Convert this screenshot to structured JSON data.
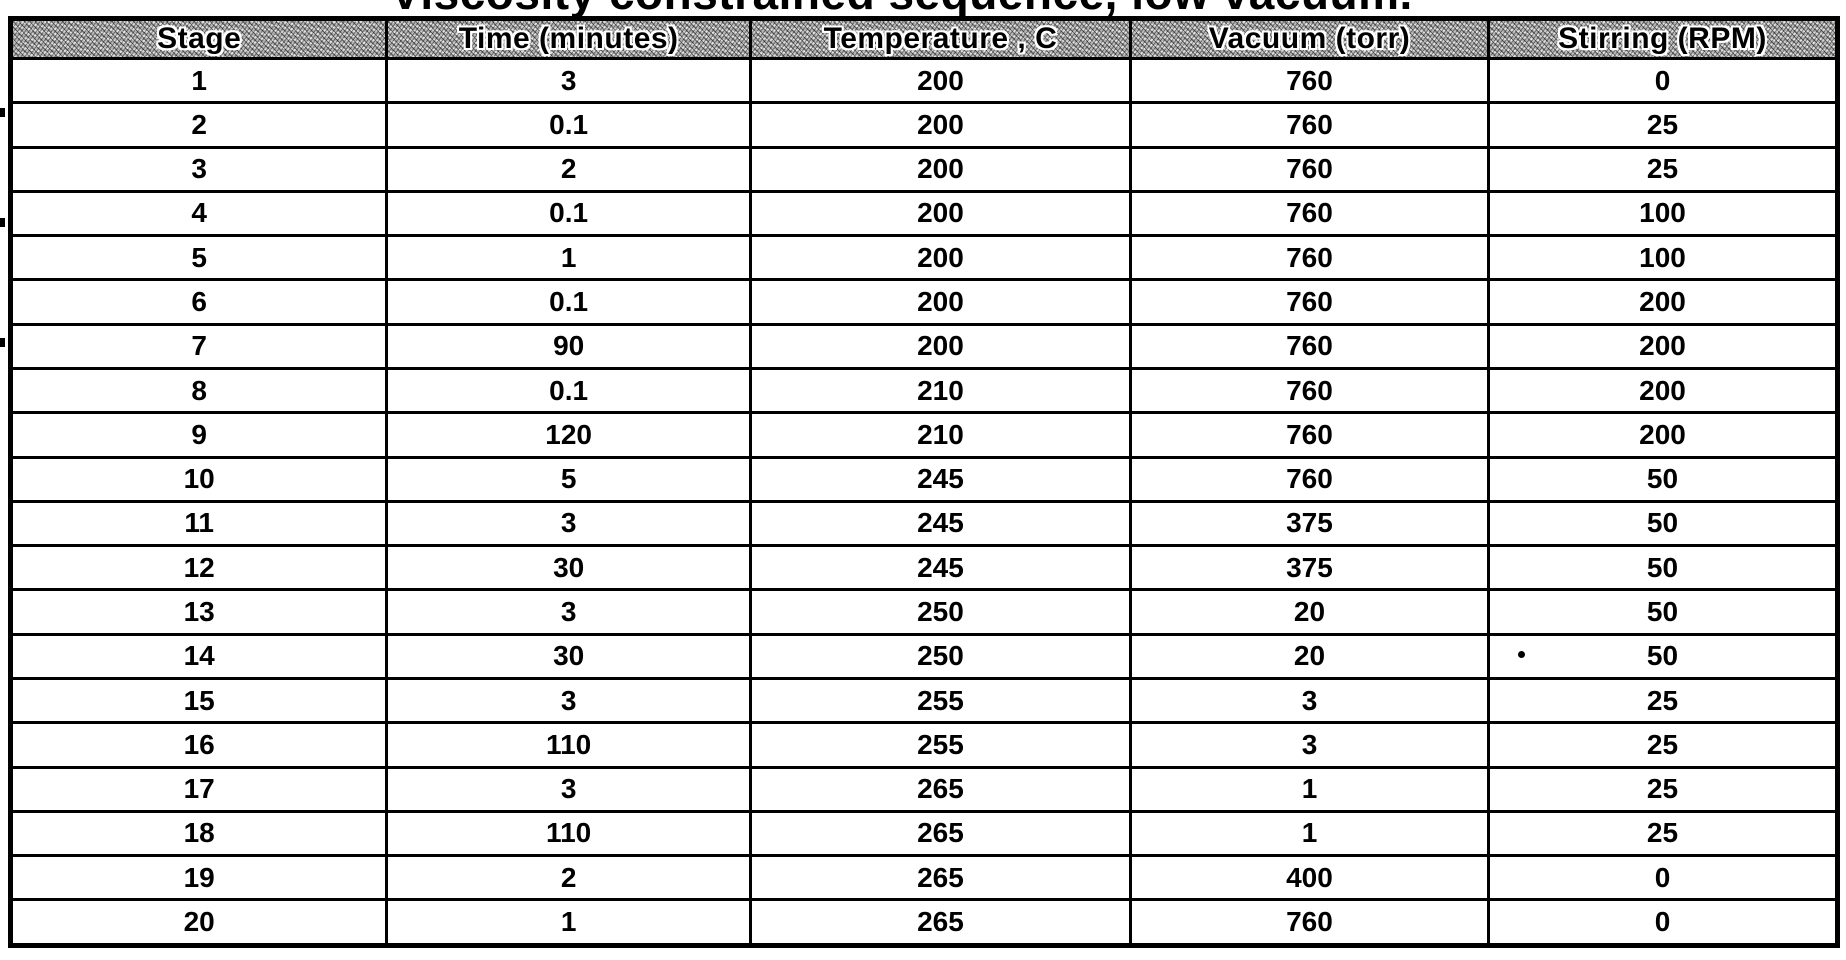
{
  "page": {
    "title": "Viscosity constrained sequence, low vacuum."
  },
  "table": {
    "columns": [
      "Stage",
      "Time (minutes)",
      "Temperature , C",
      "Vacuum (torr)",
      "Stirring (RPM)"
    ],
    "rows": [
      [
        "1",
        "3",
        "200",
        "760",
        "0"
      ],
      [
        "2",
        "0.1",
        "200",
        "760",
        "25"
      ],
      [
        "3",
        "2",
        "200",
        "760",
        "25"
      ],
      [
        "4",
        "0.1",
        "200",
        "760",
        "100"
      ],
      [
        "5",
        "1",
        "200",
        "760",
        "100"
      ],
      [
        "6",
        "0.1",
        "200",
        "760",
        "200"
      ],
      [
        "7",
        "90",
        "200",
        "760",
        "200"
      ],
      [
        "8",
        "0.1",
        "210",
        "760",
        "200"
      ],
      [
        "9",
        "120",
        "210",
        "760",
        "200"
      ],
      [
        "10",
        "5",
        "245",
        "760",
        "50"
      ],
      [
        "11",
        "3",
        "245",
        "375",
        "50"
      ],
      [
        "12",
        "30",
        "245",
        "375",
        "50"
      ],
      [
        "13",
        "3",
        "250",
        "20",
        "50"
      ],
      [
        "14",
        "30",
        "250",
        "20",
        "50"
      ],
      [
        "15",
        "3",
        "255",
        "3",
        "25"
      ],
      [
        "16",
        "110",
        "255",
        "3",
        "25"
      ],
      [
        "17",
        "3",
        "265",
        "1",
        "25"
      ],
      [
        "18",
        "110",
        "265",
        "1",
        "25"
      ],
      [
        "19",
        "2",
        "265",
        "400",
        "0"
      ],
      [
        "20",
        "1",
        "265",
        "760",
        "0"
      ]
    ]
  },
  "colors": {
    "page_bg": "#ffffff",
    "border": "#000000",
    "header_bg": "#b4b4b4",
    "text": "#000000"
  }
}
